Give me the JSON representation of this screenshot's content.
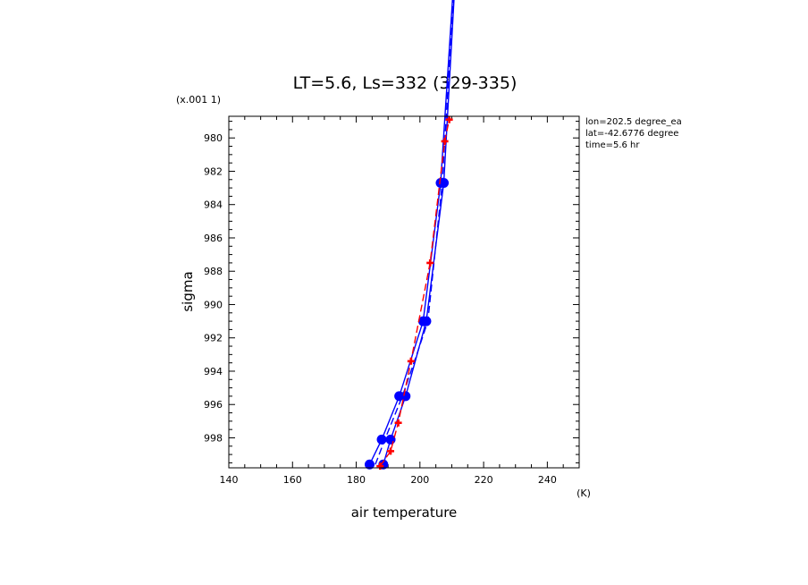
{
  "chart_data": {
    "type": "line",
    "title": "LT=5.6, Ls=332 (329-335)",
    "xlabel": "air temperature",
    "ylabel": "sigma",
    "x_unit_label": "(K)",
    "y_scale_label": "(x.001 1)",
    "xlim": [
      140,
      250
    ],
    "ylim": [
      999.8,
      978.7
    ],
    "y_inverted": true,
    "x_ticks": [
      140,
      160,
      180,
      200,
      220,
      240
    ],
    "y_ticks": [
      980,
      982,
      984,
      986,
      988,
      990,
      992,
      994,
      996,
      998
    ],
    "annotations": [
      "lon=202.5 degree_ea",
      "lat=-42.6776 degree",
      "time=5.6 hr"
    ],
    "series": [
      {
        "color": "#0000ff",
        "style": "solid",
        "marker": "circle",
        "points": [
          [
            184.2,
            999.6
          ],
          [
            188.0,
            998.1
          ],
          [
            193.5,
            995.5
          ],
          [
            201.0,
            991.0
          ],
          [
            206.5,
            982.7
          ],
          [
            210.8,
            970.0
          ]
        ]
      },
      {
        "color": "#0000ff",
        "style": "solid",
        "marker": "circle",
        "points": [
          [
            188.5,
            999.6
          ],
          [
            190.8,
            998.1
          ],
          [
            195.5,
            995.5
          ],
          [
            202.0,
            991.0
          ],
          [
            207.5,
            982.7
          ],
          [
            211.2,
            970.0
          ]
        ]
      },
      {
        "color": "#0000ff",
        "style": "dashed",
        "marker": "none",
        "points": [
          [
            186.0,
            999.6
          ],
          [
            189.0,
            998.1
          ],
          [
            194.5,
            995.5
          ],
          [
            199.0,
            993.0
          ],
          [
            202.5,
            991.0
          ],
          [
            207.0,
            982.7
          ],
          [
            211.0,
            970.0
          ]
        ]
      },
      {
        "color": "#ff0000",
        "style": "dashed",
        "marker": "plus",
        "points": [
          [
            187.5,
            999.7
          ],
          [
            190.8,
            998.8
          ],
          [
            193.2,
            997.1
          ],
          [
            197.2,
            993.4
          ],
          [
            203.2,
            987.5
          ],
          [
            207.8,
            980.2
          ],
          [
            209.2,
            978.9
          ]
        ]
      }
    ]
  }
}
